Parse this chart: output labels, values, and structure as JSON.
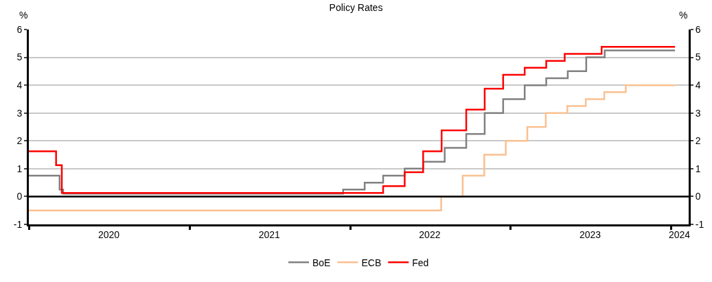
{
  "chart_data": {
    "type": "step",
    "title": "Policy Rates",
    "ylabel": "%",
    "y2label": "%",
    "series": [
      {
        "name": "BoE",
        "color": "#808080",
        "x": [
          "2020-01-01",
          "2020-03-11",
          "2020-03-19",
          "2021-12-16",
          "2022-02-03",
          "2022-03-17",
          "2022-05-05",
          "2022-06-16",
          "2022-08-04",
          "2022-09-22",
          "2022-11-03",
          "2022-12-15",
          "2023-02-02",
          "2023-03-23",
          "2023-05-11",
          "2023-06-22",
          "2023-08-03",
          "2024-01-10"
        ],
        "values": [
          0.75,
          0.25,
          0.1,
          0.25,
          0.5,
          0.75,
          1.0,
          1.25,
          1.75,
          2.25,
          3.0,
          3.5,
          4.0,
          4.25,
          4.5,
          5.0,
          5.25,
          5.25
        ]
      },
      {
        "name": "ECB",
        "color": "#fac090",
        "x": [
          "2020-01-01",
          "2022-07-27",
          "2022-09-14",
          "2022-11-02",
          "2022-12-21",
          "2023-02-08",
          "2023-03-22",
          "2023-05-10",
          "2023-06-21",
          "2023-08-02",
          "2023-09-20",
          "2024-01-10"
        ],
        "values": [
          -0.5,
          0.0,
          0.75,
          1.5,
          2.0,
          2.5,
          3.0,
          3.25,
          3.5,
          3.75,
          4.0,
          4.0
        ]
      },
      {
        "name": "Fed",
        "color": "#ff0000",
        "x": [
          "2020-01-01",
          "2020-03-03",
          "2020-03-16",
          "2022-03-17",
          "2022-05-05",
          "2022-06-16",
          "2022-07-28",
          "2022-09-22",
          "2022-11-03",
          "2022-12-15",
          "2023-02-02",
          "2023-03-23",
          "2023-05-04",
          "2023-07-27",
          "2024-01-10"
        ],
        "values": [
          1.625,
          1.125,
          0.125,
          0.375,
          0.875,
          1.625,
          2.375,
          3.125,
          3.875,
          4.375,
          4.625,
          4.875,
          5.125,
          5.375,
          5.375
        ]
      }
    ],
    "xlim": [
      "2020-01-01",
      "2024-02-10"
    ],
    "xticks": [
      {
        "value": "2020-01-01",
        "label": null
      },
      {
        "value": "2020-07-01",
        "label": "2020"
      },
      {
        "value": "2021-01-01",
        "label": null
      },
      {
        "value": "2021-07-01",
        "label": "2021"
      },
      {
        "value": "2022-01-01",
        "label": null
      },
      {
        "value": "2022-07-01",
        "label": "2022"
      },
      {
        "value": "2023-01-01",
        "label": null
      },
      {
        "value": "2023-07-01",
        "label": "2023"
      },
      {
        "value": "2024-01-01",
        "label": null
      },
      {
        "value": "2024-01-20",
        "label": "2024"
      }
    ],
    "ylim": [
      -1,
      6
    ],
    "yticks": [
      -1,
      0,
      1,
      2,
      3,
      4,
      5,
      6
    ],
    "y2lim": [
      -1,
      6
    ],
    "y2ticks": [
      -1,
      0,
      1,
      2,
      3,
      4,
      5,
      6
    ],
    "ref_lines": [
      {
        "axis": "y",
        "value": 0,
        "color": "#000000"
      }
    ],
    "grid": "y",
    "legend": "bottom",
    "line_style": "solid",
    "marker": "none"
  }
}
